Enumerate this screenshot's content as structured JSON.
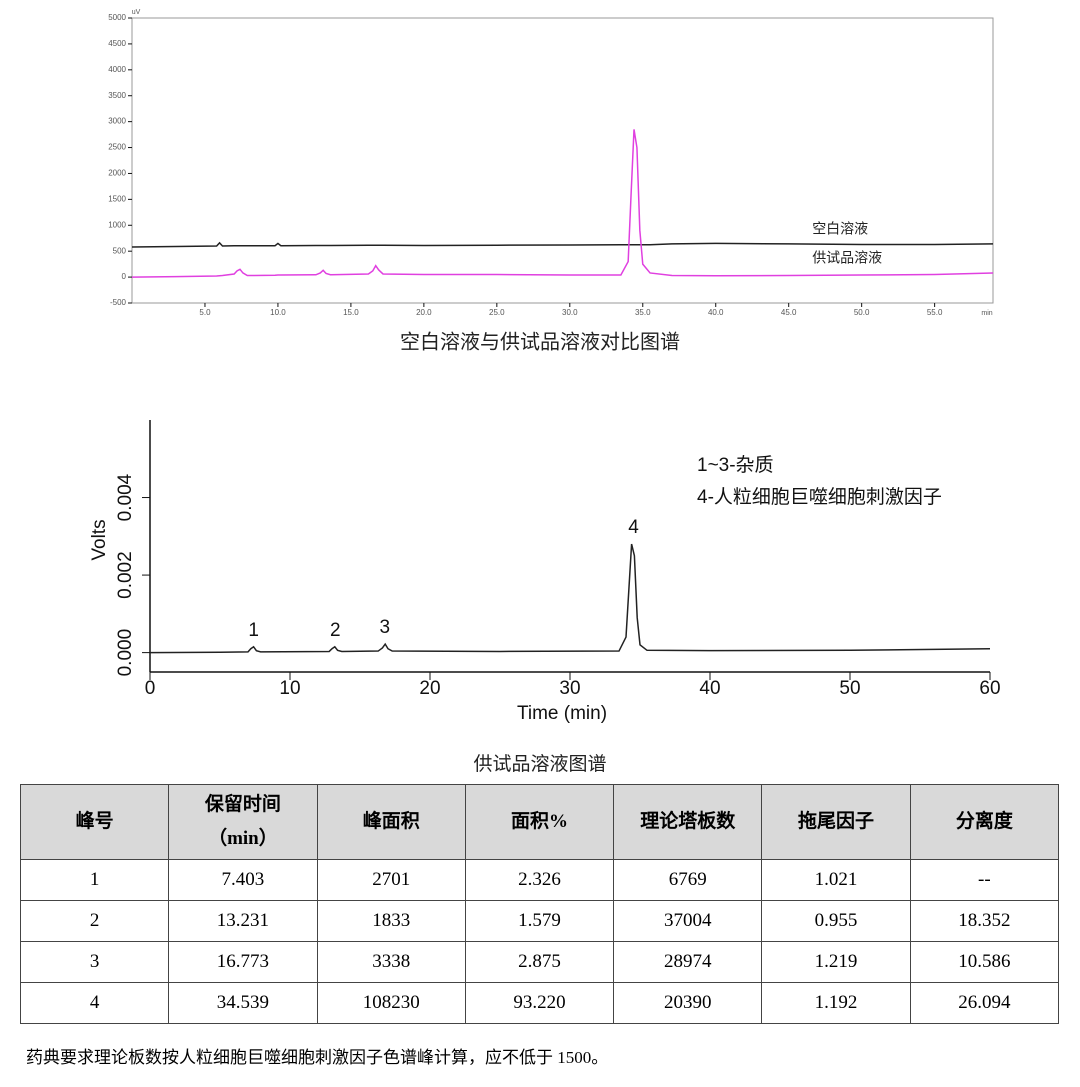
{
  "chart_data": [
    {
      "type": "line",
      "title": "空白溶液与供试品溶液对比图谱",
      "x_label": "min",
      "y_label": "uV",
      "xlim": [
        0,
        59
      ],
      "ylim": [
        -500,
        5000
      ],
      "xticks": [
        {
          "value": 5,
          "label": "5.0"
        },
        {
          "value": 10,
          "label": "10.0"
        },
        {
          "value": 15,
          "label": "15.0"
        },
        {
          "value": 20,
          "label": "20.0"
        },
        {
          "value": 25,
          "label": "25.0"
        },
        {
          "value": 30,
          "label": "30.0"
        },
        {
          "value": 35,
          "label": "35.0"
        },
        {
          "value": 40,
          "label": "40.0"
        },
        {
          "value": 45,
          "label": "45.0"
        },
        {
          "value": 50,
          "label": "50.0"
        },
        {
          "value": 55,
          "label": "55.0"
        }
      ],
      "yticks": [
        -500,
        0,
        500,
        1000,
        1500,
        2000,
        2500,
        3000,
        3500,
        4000,
        4500,
        5000
      ],
      "x": [
        0,
        3,
        5.8,
        6.0,
        6.2,
        7.0,
        7.2,
        7.4,
        7.6,
        7.9,
        9.8,
        10.0,
        10.2,
        12.6,
        12.9,
        13.1,
        13.3,
        13.6,
        16.2,
        16.5,
        16.7,
        16.9,
        17.2,
        20,
        25,
        30,
        33.5,
        34.0,
        34.2,
        34.4,
        34.6,
        34.8,
        35.0,
        35.5,
        37,
        40,
        45,
        50,
        55,
        59
      ],
      "series": [
        {
          "name": "空白溶液",
          "color": "#222222",
          "values": [
            580,
            590,
            600,
            660,
            600,
            605,
            605,
            605,
            605,
            605,
            605,
            650,
            605,
            610,
            610,
            610,
            610,
            610,
            615,
            615,
            615,
            615,
            615,
            610,
            615,
            620,
            625,
            625,
            625,
            625,
            625,
            625,
            625,
            625,
            640,
            650,
            640,
            630,
            630,
            640
          ]
        },
        {
          "name": "供试品溶液",
          "color": "#e040e0",
          "values": [
            0,
            10,
            20,
            25,
            30,
            60,
            120,
            150,
            80,
            30,
            35,
            40,
            40,
            45,
            80,
            130,
            70,
            45,
            60,
            120,
            220,
            140,
            60,
            50,
            50,
            40,
            40,
            300,
            1600,
            2850,
            2500,
            900,
            250,
            80,
            30,
            25,
            30,
            40,
            50,
            80
          ]
        }
      ]
    },
    {
      "type": "line",
      "title": "供试品溶液图谱",
      "x_label": "Time (min)",
      "y_label": "Volts",
      "xlim": [
        0,
        60
      ],
      "ylim": [
        -0.0005,
        0.006
      ],
      "xticks": [
        0,
        10,
        20,
        30,
        40,
        50,
        60
      ],
      "yticks": [
        {
          "value": 0,
          "label": "0.000"
        },
        {
          "value": 0.002,
          "label": "0.002"
        },
        {
          "value": 0.004,
          "label": "0.004"
        }
      ],
      "annotations": [
        "1~3-杂质",
        "4-人粒细胞巨噬细胞刺激因子"
      ],
      "peak_labels": [
        {
          "label": "1",
          "x": 7.403
        },
        {
          "label": "2",
          "x": 13.231
        },
        {
          "label": "3",
          "x": 16.773
        },
        {
          "label": "4",
          "x": 34.539
        }
      ],
      "x": [
        0,
        5,
        7.0,
        7.2,
        7.4,
        7.6,
        7.9,
        12.8,
        13.0,
        13.2,
        13.4,
        13.7,
        16.3,
        16.6,
        16.8,
        17.0,
        17.3,
        25,
        33.5,
        34.0,
        34.2,
        34.4,
        34.6,
        34.8,
        35.0,
        35.5,
        40,
        50,
        60
      ],
      "series": [
        {
          "color": "#222222",
          "values": [
            0,
            1e-05,
            2e-05,
            0.0001,
            0.00015,
            5e-05,
            2e-05,
            3e-05,
            0.0001,
            0.00015,
            6e-05,
            3e-05,
            4e-05,
            0.00012,
            0.00022,
            0.0001,
            4e-05,
            3e-05,
            4e-05,
            0.0004,
            0.0016,
            0.0028,
            0.0025,
            0.0009,
            0.0002,
            6e-05,
            5e-05,
            6e-05,
            0.0001
          ]
        }
      ]
    }
  ],
  "table": {
    "header": [
      "峰号",
      "保留时间\n（min）",
      "峰面积",
      "面积%",
      "理论塔板数",
      "拖尾因子",
      "分离度"
    ],
    "rows": [
      [
        "1",
        "7.403",
        "2701",
        "2.326",
        "6769",
        "1.021",
        "--"
      ],
      [
        "2",
        "13.231",
        "1833",
        "1.579",
        "37004",
        "0.955",
        "18.352"
      ],
      [
        "3",
        "16.773",
        "3338",
        "2.875",
        "28974",
        "1.219",
        "10.586"
      ],
      [
        "4",
        "34.539",
        "108230",
        "93.220",
        "20390",
        "1.192",
        "26.094"
      ]
    ]
  },
  "note": "药典要求理论板数按人粒细胞巨噬细胞刺激因子色谱峰计算，应不低于 1500。"
}
